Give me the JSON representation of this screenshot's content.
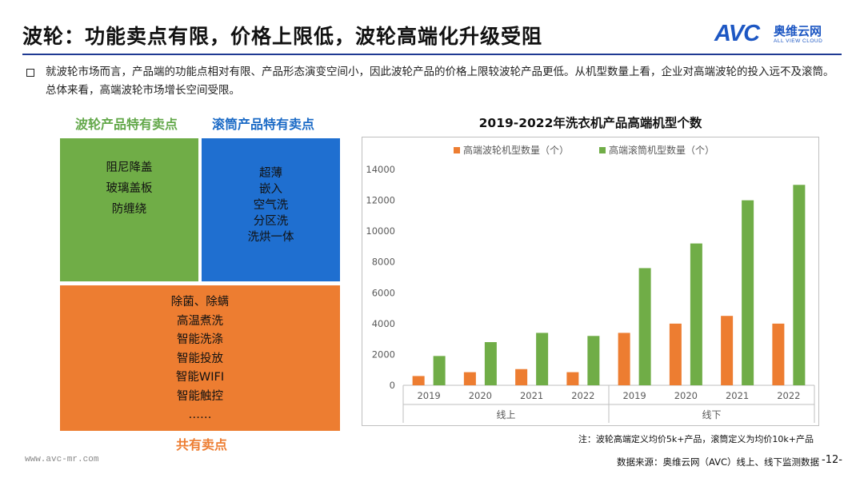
{
  "title": "波轮：功能卖点有限，价格上限低，波轮高端化升级受阻",
  "logo": {
    "mark": "AVC",
    "cn": "奥维云网",
    "en": "ALL VIEW CLOUD"
  },
  "intro": "就波轮市场而言，产品端的功能点相对有限、产品形态演变空间小，因此波轮产品的价格上限较波轮产品更低。从机型数量上看，企业对高端波轮的投入远不及滚筒。总体来看，高端波轮市场增长空间受限。",
  "features": {
    "green_header": "波轮产品特有卖点",
    "blue_header": "滚筒产品特有卖点",
    "shared_header": "共有卖点",
    "green_items": [
      "阻尼降盖",
      "玻璃盖板",
      "防缠绕"
    ],
    "blue_items": [
      "超薄",
      "嵌入",
      "空气洗",
      "分区洗",
      "洗烘一体"
    ],
    "shared_items": [
      "除菌、除螨",
      "高温煮洗",
      "智能洗涤",
      "智能投放",
      "智能WIFI",
      "智能触控",
      "……"
    ]
  },
  "colors": {
    "orange": "#ed7d31",
    "green": "#70ad47",
    "blue": "#1f6fd0",
    "title_rule": "#1f3a93"
  },
  "chart_data": {
    "type": "bar",
    "title": "2019-2022年洗衣机产品高端机型个数",
    "categories": [
      "2019",
      "2020",
      "2021",
      "2022",
      "2019",
      "2020",
      "2021",
      "2022"
    ],
    "groups": [
      {
        "label": "线上"
      },
      {
        "label": "线下"
      }
    ],
    "ylim": [
      0,
      14000
    ],
    "yticks": [
      "0",
      "2000",
      "4000",
      "6000",
      "8000",
      "10000",
      "12000",
      "14000"
    ],
    "legend_position": "top",
    "grid": false,
    "series": [
      {
        "name": "高端波轮机型数量（个）",
        "color": "#ed7d31",
        "values": [
          600,
          850,
          1050,
          850,
          3400,
          4000,
          4500,
          4000
        ]
      },
      {
        "name": "高端滚筒机型数量（个）",
        "color": "#70ad47",
        "values": [
          1900,
          2800,
          3400,
          3200,
          7600,
          9200,
          12000,
          13000
        ]
      }
    ]
  },
  "footer": {
    "note": "注：波轮高端定义均价5k+产品，滚筒定义为均价10k+产品",
    "source": "数据来源：奥维云网（AVC）线上、线下监测数据",
    "page": "-12-",
    "website": "www.avc-mr.com"
  }
}
